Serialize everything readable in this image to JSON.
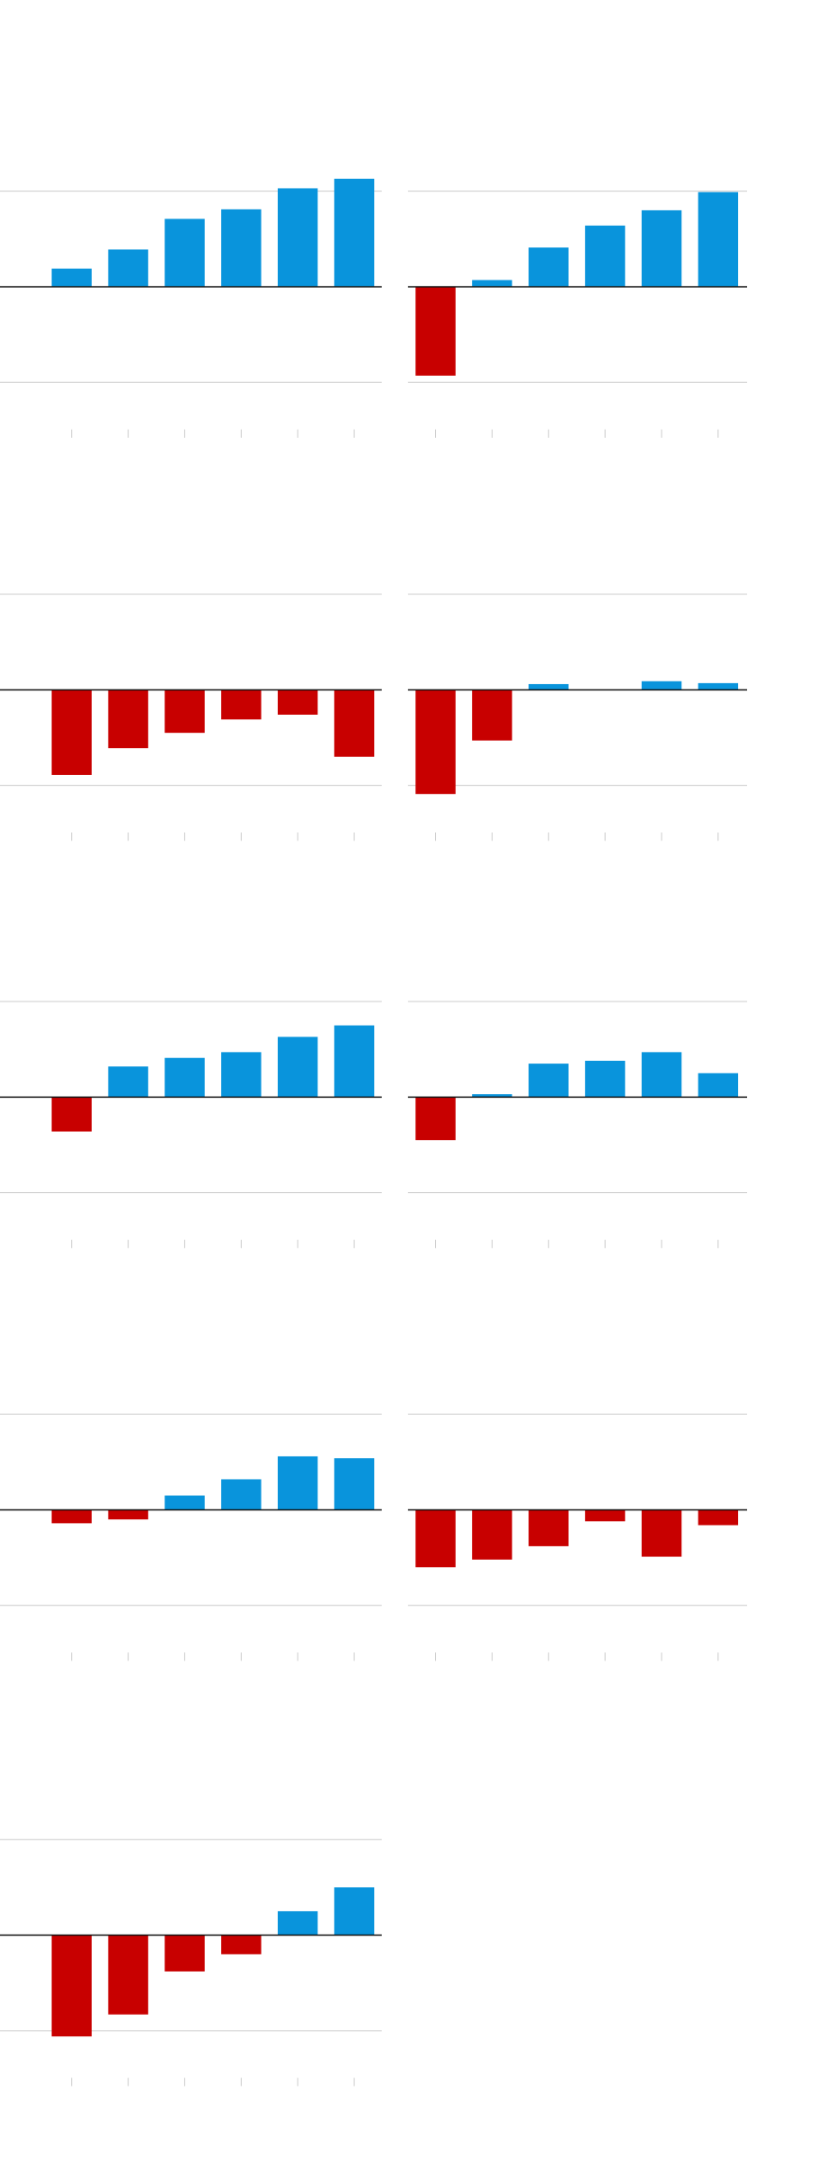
{
  "chart_data": [
    {
      "type": "bar",
      "values": [
        0.19,
        0.39,
        0.71,
        0.81,
        1.03,
        1.13
      ],
      "ylim": [
        -1.2,
        1.2
      ],
      "yticks": [
        -1,
        0,
        1
      ],
      "grid": true,
      "positive_color": "#0994dc",
      "negative_color": "#c80000"
    },
    {
      "type": "bar",
      "values": [
        -0.93,
        0.07,
        0.41,
        0.64,
        0.8,
        0.99
      ],
      "ylim": [
        -1.2,
        1.2
      ],
      "yticks": [
        -1,
        0,
        1
      ],
      "grid": true,
      "positive_color": "#0994dc",
      "negative_color": "#c80000"
    },
    {
      "type": "bar",
      "values": [
        -0.89,
        -0.61,
        -0.45,
        -0.31,
        -0.26,
        -0.7
      ],
      "ylim": [
        -1.2,
        1.2
      ],
      "yticks": [
        -1,
        0,
        1
      ],
      "grid": true,
      "positive_color": "#0994dc",
      "negative_color": "#c80000"
    },
    {
      "type": "bar",
      "values": [
        -1.09,
        -0.53,
        0.06,
        0,
        0.09,
        0.07
      ],
      "ylim": [
        -1.2,
        1.2
      ],
      "yticks": [
        -1,
        0,
        1
      ],
      "grid": true,
      "positive_color": "#0994dc",
      "negative_color": "#c80000"
    },
    {
      "type": "bar",
      "values": [
        -0.36,
        0.32,
        0.41,
        0.47,
        0.63,
        0.75
      ],
      "ylim": [
        -1.2,
        1.2
      ],
      "yticks": [
        -1,
        0,
        1
      ],
      "grid": true,
      "positive_color": "#0994dc",
      "negative_color": "#c80000"
    },
    {
      "type": "bar",
      "values": [
        -0.45,
        0.03,
        0.35,
        0.38,
        0.47,
        0.25
      ],
      "ylim": [
        -1.2,
        1.2
      ],
      "yticks": [
        -1,
        0,
        1
      ],
      "grid": true,
      "positive_color": "#0994dc",
      "negative_color": "#c80000"
    },
    {
      "type": "bar",
      "values": [
        -0.14,
        -0.1,
        0.15,
        0.32,
        0.56,
        0.54
      ],
      "ylim": [
        -1.2,
        1.2
      ],
      "yticks": [
        -1,
        0,
        1
      ],
      "grid": true,
      "positive_color": "#0994dc",
      "negative_color": "#c80000"
    },
    {
      "type": "bar",
      "values": [
        -0.6,
        -0.52,
        -0.38,
        -0.12,
        -0.49,
        -0.16
      ],
      "ylim": [
        -1.2,
        1.2
      ],
      "yticks": [
        -1,
        0,
        1
      ],
      "grid": true,
      "positive_color": "#0994dc",
      "negative_color": "#c80000"
    },
    {
      "type": "bar",
      "values": [
        -1.06,
        -0.83,
        -0.38,
        -0.2,
        0.25,
        0.5
      ],
      "ylim": [
        -1.2,
        1.2
      ],
      "yticks": [
        -1,
        0,
        1
      ],
      "grid": true,
      "positive_color": "#0994dc",
      "negative_color": "#c80000"
    }
  ]
}
